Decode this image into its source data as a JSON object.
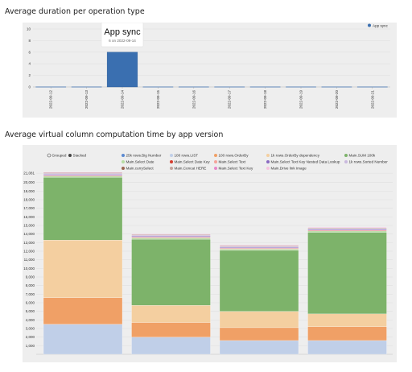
{
  "charts": {
    "duration": {
      "title": "Average duration per operation type"
    },
    "computation": {
      "title": "Average virtual column computation time by app version"
    }
  },
  "tooltip": {
    "title": "App sync",
    "subtitle": "6 on 2022-09-14"
  },
  "toggle": {
    "grouped_label": "Grouped",
    "stacked_label": "Stacked",
    "selected": "stacked"
  },
  "chart_data": [
    {
      "type": "bar",
      "title": "Average duration per operation type",
      "categories": [
        "2022-09-12",
        "2022-09-13",
        "2022-09-14",
        "2022-09-15",
        "2022-09-16",
        "2022-09-17",
        "2022-09-18",
        "2022-09-19",
        "2022-09-20",
        "2022-09-21"
      ],
      "series": [
        {
          "name": "App sync",
          "color": "#3a6fb0",
          "values": [
            0,
            0,
            6,
            0,
            0,
            0,
            0,
            0,
            0,
            0
          ]
        }
      ],
      "yticks": [
        0,
        2,
        4,
        6,
        8,
        10
      ],
      "ylim": [
        0,
        10
      ],
      "grid": true,
      "legend": "top-right"
    },
    {
      "type": "bar",
      "stacked": true,
      "title": "Average virtual column computation time by app version",
      "categories": [
        "",
        "",
        "",
        ""
      ],
      "ylim": [
        0,
        21000
      ],
      "ymax_label": "21,081",
      "yticks": [
        "1,000",
        "2,000",
        "3,000",
        "4,000",
        "5,000",
        "6,000",
        "7,000",
        "8,000",
        "9,000",
        "10,000",
        "11,000",
        "12,000",
        "13,000",
        "14,000",
        "15,000",
        "16,000",
        "17,000",
        "18,000",
        "19,000",
        "20,000",
        "21,081"
      ],
      "ytick_values": [
        1000,
        2000,
        3000,
        4000,
        5000,
        6000,
        7000,
        8000,
        9000,
        10000,
        11000,
        12000,
        13000,
        14000,
        15000,
        16000,
        17000,
        18000,
        19000,
        20000,
        21081
      ],
      "grid": true,
      "legend": "top",
      "series": [
        {
          "name": "25k rows.Big Number",
          "color": "#5b8ad1",
          "values": [
            0,
            0,
            0,
            0
          ]
        },
        {
          "name": "100 rows.LIST",
          "color": "#c0cfe8",
          "values": [
            3500,
            2000,
            1600,
            1600
          ]
        },
        {
          "name": "100 rows.OrderBy",
          "color": "#f0a066",
          "values": [
            3100,
            1700,
            1500,
            1600
          ]
        },
        {
          "name": "1k rows.OrderBy dependency",
          "color": "#f4cfa0",
          "values": [
            6700,
            2000,
            1900,
            1500
          ]
        },
        {
          "name": "Main.SUM 100k",
          "color": "#7db36a",
          "values": [
            7300,
            7700,
            7100,
            9500
          ]
        },
        {
          "name": "Main.Select Date",
          "color": "#b7dca2",
          "values": [
            150,
            150,
            150,
            150
          ]
        },
        {
          "name": "Main.Select Date Key",
          "color": "#d43c2e",
          "values": [
            0,
            0,
            0,
            0
          ]
        },
        {
          "name": "Main.Select Text",
          "color": "#f5a39a",
          "values": [
            100,
            100,
            100,
            100
          ]
        },
        {
          "name": "Main.Select Text Key Nested Data Lookup",
          "color": "#8a6ac2",
          "values": [
            100,
            100,
            100,
            100
          ]
        },
        {
          "name": "1k rows.Sorted Number",
          "color": "#c9b9de",
          "values": [
            100,
            100,
            100,
            100
          ]
        },
        {
          "name": "Main.currySelect",
          "color": "#9a6650",
          "values": [
            0,
            0,
            0,
            0
          ]
        },
        {
          "name": "Main.Concat HERE",
          "color": "#c4a39b",
          "values": [
            100,
            100,
            100,
            100
          ]
        },
        {
          "name": "Main.Select Text Key",
          "color": "#e788c9",
          "values": [
            50,
            50,
            50,
            50
          ]
        },
        {
          "name": "Main.Drive link Image",
          "color": "#f7c4e0",
          "values": [
            0,
            0,
            0,
            0
          ]
        }
      ]
    }
  ]
}
